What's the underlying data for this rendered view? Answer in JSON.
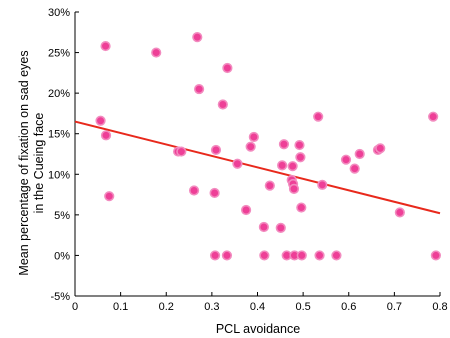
{
  "chart_data": {
    "type": "scatter",
    "xlabel": "PCL avoidance",
    "ylabel_lines": [
      "Mean percentage of fixation on sad eyes",
      "in the Cueing face"
    ],
    "xlim": [
      0,
      0.8
    ],
    "ylim": [
      -5,
      30
    ],
    "x_ticks": [
      {
        "value": 0,
        "label": "0"
      },
      {
        "value": 0.1,
        "label": "0.1"
      },
      {
        "value": 0.2,
        "label": "0.2"
      },
      {
        "value": 0.3,
        "label": "0.3"
      },
      {
        "value": 0.4,
        "label": "0.4"
      },
      {
        "value": 0.5,
        "label": "0.5"
      },
      {
        "value": 0.6,
        "label": "0.6"
      },
      {
        "value": 0.7,
        "label": "0.7"
      },
      {
        "value": 0.8,
        "label": "0.8"
      }
    ],
    "y_ticks": [
      {
        "value": -5,
        "label": "-5%"
      },
      {
        "value": 0,
        "label": "0%"
      },
      {
        "value": 5,
        "label": "5%"
      },
      {
        "value": 10,
        "label": "10%"
      },
      {
        "value": 15,
        "label": "15%"
      },
      {
        "value": 20,
        "label": "20%"
      },
      {
        "value": 25,
        "label": "25%"
      },
      {
        "value": 30,
        "label": "30%"
      }
    ],
    "points": [
      {
        "x": 0.056,
        "y": 16.6
      },
      {
        "x": 0.067,
        "y": 25.8
      },
      {
        "x": 0.068,
        "y": 14.8
      },
      {
        "x": 0.075,
        "y": 7.3
      },
      {
        "x": 0.178,
        "y": 25.0
      },
      {
        "x": 0.226,
        "y": 12.8
      },
      {
        "x": 0.233,
        "y": 12.8
      },
      {
        "x": 0.261,
        "y": 8.0
      },
      {
        "x": 0.268,
        "y": 26.9
      },
      {
        "x": 0.272,
        "y": 20.5
      },
      {
        "x": 0.306,
        "y": 7.7
      },
      {
        "x": 0.307,
        "y": 0.0
      },
      {
        "x": 0.309,
        "y": 13.0
      },
      {
        "x": 0.324,
        "y": 18.6
      },
      {
        "x": 0.333,
        "y": 0.0
      },
      {
        "x": 0.334,
        "y": 23.1
      },
      {
        "x": 0.356,
        "y": 11.3
      },
      {
        "x": 0.375,
        "y": 5.6
      },
      {
        "x": 0.385,
        "y": 13.4
      },
      {
        "x": 0.392,
        "y": 14.6
      },
      {
        "x": 0.414,
        "y": 3.5
      },
      {
        "x": 0.415,
        "y": 0.0
      },
      {
        "x": 0.427,
        "y": 8.6
      },
      {
        "x": 0.451,
        "y": 3.4
      },
      {
        "x": 0.454,
        "y": 11.1
      },
      {
        "x": 0.458,
        "y": 13.7
      },
      {
        "x": 0.464,
        "y": 0.0
      },
      {
        "x": 0.475,
        "y": 9.3
      },
      {
        "x": 0.477,
        "y": 11.0
      },
      {
        "x": 0.478,
        "y": 8.8
      },
      {
        "x": 0.48,
        "y": 8.2
      },
      {
        "x": 0.481,
        "y": 0.0
      },
      {
        "x": 0.492,
        "y": 13.6
      },
      {
        "x": 0.494,
        "y": 12.1
      },
      {
        "x": 0.496,
        "y": 5.9
      },
      {
        "x": 0.497,
        "y": 0.0
      },
      {
        "x": 0.533,
        "y": 17.1
      },
      {
        "x": 0.536,
        "y": 0.0
      },
      {
        "x": 0.542,
        "y": 8.7
      },
      {
        "x": 0.573,
        "y": 0.0
      },
      {
        "x": 0.594,
        "y": 11.8
      },
      {
        "x": 0.613,
        "y": 10.7
      },
      {
        "x": 0.624,
        "y": 12.5
      },
      {
        "x": 0.664,
        "y": 13.0
      },
      {
        "x": 0.669,
        "y": 13.2
      },
      {
        "x": 0.712,
        "y": 5.3
      },
      {
        "x": 0.785,
        "y": 17.1
      },
      {
        "x": 0.791,
        "y": 0.0
      }
    ],
    "trendline": {
      "x": [
        0,
        0.8
      ],
      "y": [
        16.5,
        5.2
      ]
    },
    "colors": {
      "point_fill": "#ee3f97",
      "point_stroke": "#f28bbf",
      "trendline": "#e8291c",
      "axis": "#000000"
    },
    "grid": false,
    "legend": "none"
  }
}
